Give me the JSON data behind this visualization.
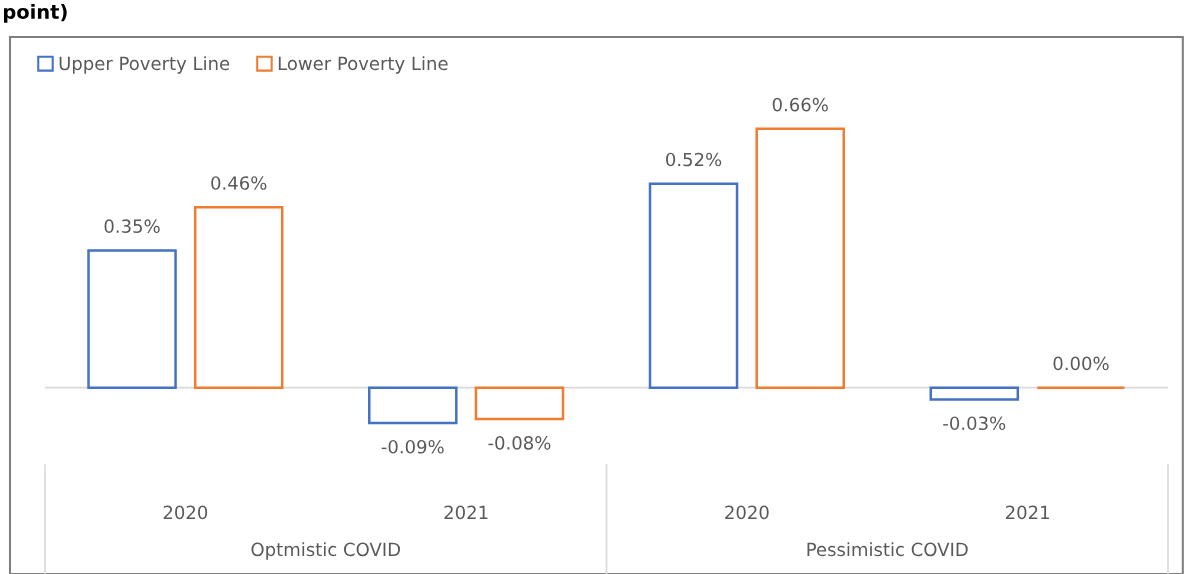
{
  "chart_data": {
    "type": "bar",
    "title": "point)",
    "categories": [
      "2020",
      "2021",
      "2020",
      "2021"
    ],
    "annotations": [
      "Optmistic COVID",
      "Pessimistic COVID"
    ],
    "series": [
      {
        "name": "Upper Poverty Line",
        "color": "#4472c4",
        "values": [
          0.35,
          -0.09,
          0.52,
          -0.03
        ],
        "value_labels": [
          "0.35%",
          "-0.09%",
          "0.52%",
          "-0.03%"
        ]
      },
      {
        "name": "Lower Poverty Line",
        "color": "#ed7d31",
        "values": [
          0.46,
          -0.08,
          0.66,
          0.0
        ],
        "value_labels": [
          "0.46%",
          "-0.08%",
          "0.66%",
          "0.00%"
        ]
      }
    ],
    "legend": "top left",
    "grid": false
  }
}
